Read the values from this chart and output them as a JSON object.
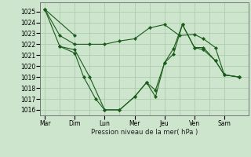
{
  "background_color": "#cde4cd",
  "grid_color": "#a8c8a8",
  "line_color": "#1a5c1a",
  "xlabel": "Pression niveau de la mer( hPa )",
  "ylim": [
    1015.5,
    1025.8
  ],
  "yticks": [
    1016,
    1017,
    1018,
    1019,
    1020,
    1021,
    1022,
    1023,
    1024,
    1025
  ],
  "day_labels": [
    "Mar",
    "Dim",
    "Lun",
    "Mer",
    "Jeu",
    "Ven",
    "Sam"
  ],
  "day_positions": [
    0,
    1,
    2,
    3,
    4,
    5,
    6
  ],
  "xlim": [
    -0.15,
    6.8
  ],
  "series": [
    {
      "x": [
        0,
        1
      ],
      "y": [
        1025.2,
        1022.8
      ]
    },
    {
      "x": [
        0,
        0.5,
        1.0,
        1.5,
        2.0,
        2.5,
        3.0,
        3.5,
        4.0,
        4.5,
        5.0,
        5.3,
        5.7,
        6.0,
        6.5
      ],
      "y": [
        1025.2,
        1022.8,
        1022.0,
        1022.0,
        1022.0,
        1022.3,
        1022.5,
        1023.5,
        1023.8,
        1022.8,
        1022.9,
        1022.5,
        1021.7,
        1019.2,
        1019.0
      ]
    },
    {
      "x": [
        0,
        0.5,
        1.0,
        1.5,
        2.0,
        2.5,
        3.0,
        3.4,
        3.7,
        4.0,
        4.3,
        4.6,
        5.0,
        5.3,
        5.7,
        6.0,
        6.5
      ],
      "y": [
        1025.2,
        1021.8,
        1021.5,
        1019.0,
        1016.0,
        1016.0,
        1017.2,
        1018.5,
        1017.8,
        1020.3,
        1021.6,
        1023.8,
        1021.7,
        1021.7,
        1020.5,
        1019.2,
        1019.0
      ]
    },
    {
      "x": [
        0.5,
        1.0,
        1.3,
        1.7,
        2.0,
        2.5,
        3.0,
        3.4,
        3.7,
        4.0,
        4.3,
        4.6,
        5.0,
        5.3,
        5.7,
        6.0,
        6.5
      ],
      "y": [
        1021.8,
        1021.2,
        1019.0,
        1017.0,
        1016.0,
        1016.0,
        1017.2,
        1018.5,
        1017.2,
        1020.3,
        1021.1,
        1023.8,
        1021.7,
        1021.5,
        1020.5,
        1019.2,
        1019.0
      ]
    }
  ]
}
